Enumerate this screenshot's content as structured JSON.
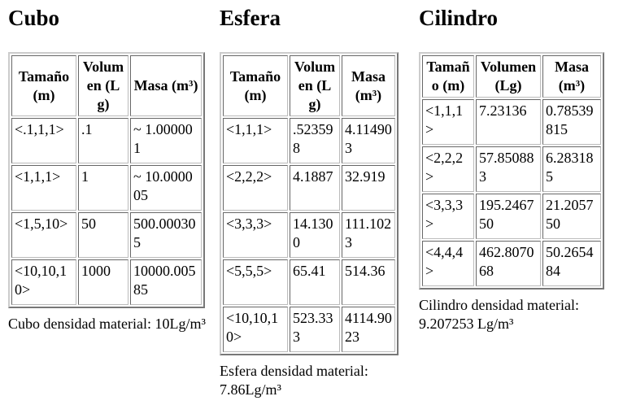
{
  "sections": [
    {
      "title": "Cubo",
      "table": {
        "header": [
          "Tamaño (m)",
          "Volumen (Lg)",
          "Masa (m³)"
        ],
        "rows": [
          [
            "<.1,1,1>",
            ".1",
            "~ 1.000001"
          ],
          [
            "<1,1,1>",
            "1",
            "~ 10.000005"
          ],
          [
            "<1,5,10>",
            "50",
            "500.000305"
          ],
          [
            "<10,10,10>",
            "1000",
            "10000.00585"
          ]
        ]
      },
      "note": "Cubo densidad material: 10Lg/m³"
    },
    {
      "title": "Esfera",
      "table": {
        "header": [
          "Tamaño (m)",
          "Volumen (Lg)",
          "Masa (m³)"
        ],
        "rows": [
          [
            "<1,1,1>",
            ".523598",
            "4.114903"
          ],
          [
            "<2,2,2>",
            "4.1887",
            "32.919"
          ],
          [
            "<3,3,3>",
            "14.1300",
            "111.1023"
          ],
          [
            "<5,5,5>",
            "65.41",
            "514.36"
          ],
          [
            "<10,10,10>",
            "523.333",
            "4114.9023"
          ]
        ]
      },
      "note": "Esfera densidad material: 7.86Lg/m³"
    },
    {
      "title": "Cilindro",
      "table": {
        "header": [
          "Tamaño (m)",
          "Volumen (Lg)",
          "Masa (m³)"
        ],
        "rows": [
          [
            "<1,1,1>",
            "7.23136",
            "0.78539815"
          ],
          [
            "<2,2,2>",
            "57.850883",
            "6.283185"
          ],
          [
            "<3,3,3>",
            "195.246750",
            "21.205750"
          ],
          [
            "<4,4,4>",
            "462.807068",
            "50.265484"
          ]
        ]
      },
      "note": "Cilindro densidad material: 9.207253 Lg/m³"
    }
  ]
}
